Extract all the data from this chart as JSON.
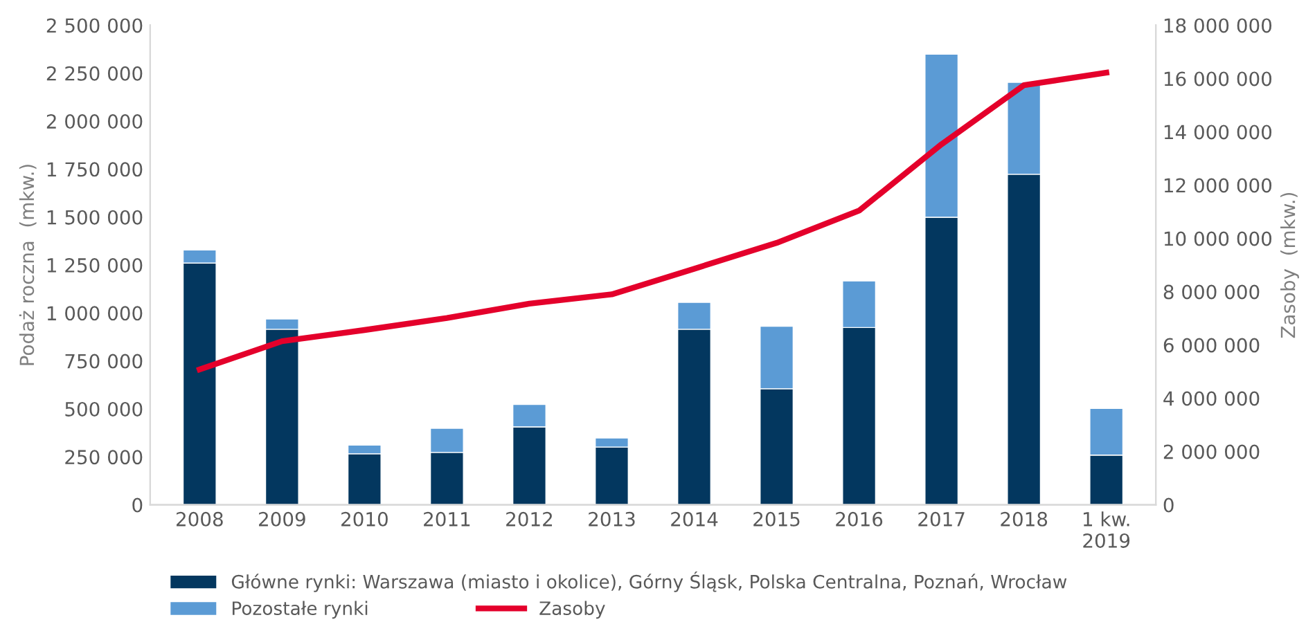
{
  "chart_data": {
    "type": "bar",
    "stacked": true,
    "ylabel": "Podaż roczna  (mkw.)",
    "y2label": "Zasoby  (mkw.)",
    "categories": [
      "2008",
      "2009",
      "2010",
      "2011",
      "2012",
      "2013",
      "2014",
      "2015",
      "2016",
      "2017",
      "2018",
      "1 kw.\n2019"
    ],
    "series": [
      {
        "name": "Główne rynki: Warszawa (miasto i okolice), Górny Śląsk, Polska Centralna, Poznań, Wrocław",
        "color": "#03375f",
        "values": [
          1260000,
          915000,
          266000,
          273000,
          406000,
          301000,
          915000,
          605000,
          924000,
          1499000,
          1723000,
          259000
        ]
      },
      {
        "name": "Pozostałe rynki",
        "color": "#5b9bd5",
        "values": [
          68000,
          54000,
          45000,
          126000,
          117000,
          47000,
          140000,
          326000,
          243000,
          850000,
          479000,
          243000
        ]
      },
      {
        "name": "Zasoby",
        "type": "line",
        "axis": "y2",
        "color": "#e4002b",
        "values": [
          5080000,
          6140000,
          6560000,
          7010000,
          7550000,
          7900000,
          8860000,
          9830000,
          11040000,
          13530000,
          15750000,
          16220000
        ]
      }
    ],
    "ylim": [
      0,
      2500000
    ],
    "yticks": [
      0,
      {
        "value": 250000,
        "label": "250 000"
      },
      {
        "value": 500000,
        "label": "500 000"
      },
      {
        "value": 750000,
        "label": "750 000"
      },
      {
        "value": 1000000,
        "label": "1 000 000"
      },
      {
        "value": 1250000,
        "label": "1 250 000"
      },
      {
        "value": 1500000,
        "label": "1 500 000"
      },
      {
        "value": 1750000,
        "label": "1 750 000"
      },
      {
        "value": 2000000,
        "label": "2 000 000"
      },
      {
        "value": 2250000,
        "label": "2 250 000"
      },
      {
        "value": 2500000,
        "label": "2 500 000"
      }
    ],
    "y2lim": [
      0,
      18000000
    ],
    "y2ticks": [
      0,
      {
        "value": 2000000,
        "label": "2 000 000"
      },
      {
        "value": 4000000,
        "label": "4 000 000"
      },
      {
        "value": 6000000,
        "label": "6 000 000"
      },
      {
        "value": 8000000,
        "label": "8 000 000"
      },
      {
        "value": 10000000,
        "label": "10 000 000"
      },
      {
        "value": 12000000,
        "label": "12 000 000"
      },
      {
        "value": 14000000,
        "label": "14 000 000"
      },
      {
        "value": 16000000,
        "label": "16 000 000"
      },
      {
        "value": 18000000,
        "label": "18 000 000"
      }
    ],
    "legend": "bottom",
    "grid": false,
    "line_style": "solid",
    "marker": "none"
  }
}
